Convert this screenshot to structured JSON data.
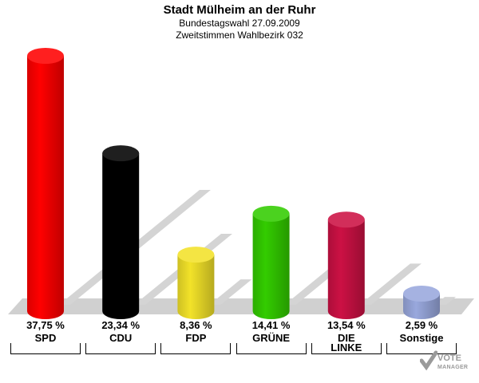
{
  "header": {
    "title": "Stadt Mülheim an der Ruhr",
    "subtitle1": "Bundestagswahl 27.09.2009",
    "subtitle2": "Zweitstimmen Wahlbezirk 032"
  },
  "logo": {
    "line1": "VOTE",
    "line2": "MANAGER"
  },
  "chart_data": {
    "type": "bar",
    "title": "Stadt Mülheim an der Ruhr",
    "subtitle": "Bundestagswahl 27.09.2009 / Zweitstimmen Wahlbezirk 032",
    "categories": [
      "SPD",
      "CDU",
      "FDP",
      "GRÜNE",
      "DIE LINKE",
      "Sonstige"
    ],
    "category_lines": [
      [
        "SPD"
      ],
      [
        "CDU"
      ],
      [
        "FDP"
      ],
      [
        "GRÜNE"
      ],
      [
        "DIE",
        "LINKE"
      ],
      [
        "Sonstige"
      ]
    ],
    "values": [
      37.75,
      23.34,
      8.36,
      14.41,
      13.54,
      2.59
    ],
    "value_labels": [
      "37,75 %",
      "23,34 %",
      "8,36 %",
      "14,41 %",
      "13,54 %",
      "2,59 %"
    ],
    "colors": [
      "#ff0000",
      "#000000",
      "#f2e229",
      "#33cc00",
      "#cc1144",
      "#99a8dd"
    ],
    "unit": "%",
    "ylim": [
      0,
      40
    ],
    "grid": false,
    "legend": "none"
  }
}
